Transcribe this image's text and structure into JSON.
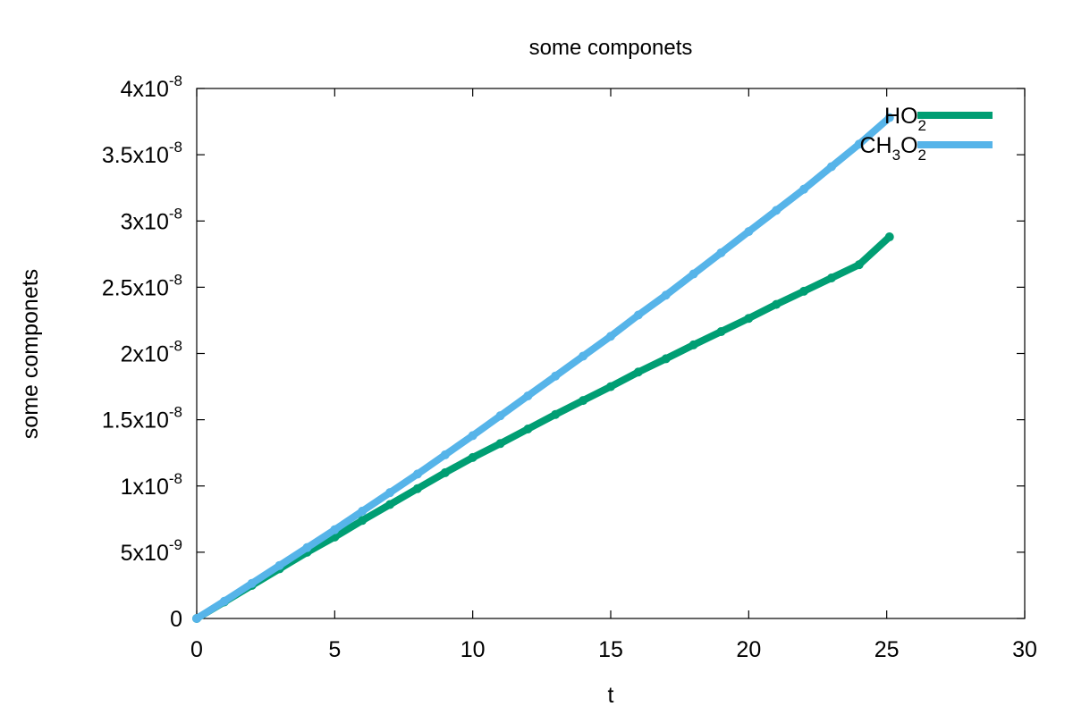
{
  "chart_data": {
    "type": "line",
    "title": "some componets",
    "xlabel": "t",
    "ylabel": "some componets",
    "xlim": [
      0,
      30
    ],
    "ylim": [
      0,
      4e-08
    ],
    "grid": false,
    "legend_position": "top-right",
    "x_ticks": [
      {
        "value": 0,
        "label": "0"
      },
      {
        "value": 5,
        "label": "5"
      },
      {
        "value": 10,
        "label": "10"
      },
      {
        "value": 15,
        "label": "15"
      },
      {
        "value": 20,
        "label": "20"
      },
      {
        "value": 25,
        "label": "25"
      },
      {
        "value": 30,
        "label": "30"
      }
    ],
    "y_ticks": [
      {
        "value": 0,
        "mantissa": "0",
        "exponent": ""
      },
      {
        "value": 5e-09,
        "mantissa": "5x10",
        "exponent": "-9"
      },
      {
        "value": 1e-08,
        "mantissa": "1x10",
        "exponent": "-8"
      },
      {
        "value": 1.5e-08,
        "mantissa": "1.5x10",
        "exponent": "-8"
      },
      {
        "value": 2e-08,
        "mantissa": "2x10",
        "exponent": "-8"
      },
      {
        "value": 2.5e-08,
        "mantissa": "2.5x10",
        "exponent": "-8"
      },
      {
        "value": 3e-08,
        "mantissa": "3x10",
        "exponent": "-8"
      },
      {
        "value": 3.5e-08,
        "mantissa": "3.5x10",
        "exponent": "-8"
      },
      {
        "value": 4e-08,
        "mantissa": "4x10",
        "exponent": "-8"
      }
    ],
    "series": [
      {
        "name": "HO2",
        "name_parts": [
          {
            "text": "HO",
            "sub": ""
          },
          {
            "text": "",
            "sub": "2"
          }
        ],
        "color": "#009e73",
        "x": [
          0,
          1,
          2,
          3,
          4,
          5,
          6,
          7,
          8,
          9,
          10,
          11,
          12,
          13,
          14,
          15,
          16,
          17,
          18,
          19,
          20,
          21,
          22,
          23,
          24,
          25.1
        ],
        "y": [
          0,
          1.25e-09,
          2.5e-09,
          3.75e-09,
          5e-09,
          6.15e-09,
          7.4e-09,
          8.6e-09,
          9.8e-09,
          1.1e-08,
          1.215e-08,
          1.32e-08,
          1.43e-08,
          1.54e-08,
          1.645e-08,
          1.75e-08,
          1.86e-08,
          1.96e-08,
          2.065e-08,
          2.165e-08,
          2.265e-08,
          2.37e-08,
          2.47e-08,
          2.57e-08,
          2.67e-08,
          2.88e-08
        ]
      },
      {
        "name": "CH3O2",
        "name_parts": [
          {
            "text": "CH",
            "sub": "3"
          },
          {
            "text": "O",
            "sub": "2"
          }
        ],
        "color": "#56b4e9",
        "x": [
          0,
          1,
          2,
          3,
          4,
          5,
          6,
          7,
          8,
          9,
          10,
          11,
          12,
          13,
          14,
          15,
          16,
          17,
          18,
          19,
          20,
          21,
          22,
          23,
          24,
          25.1
        ],
        "y": [
          0,
          1.3e-09,
          2.65e-09,
          4e-09,
          5.35e-09,
          6.7e-09,
          8.1e-09,
          9.5e-09,
          1.09e-08,
          1.235e-08,
          1.38e-08,
          1.53e-08,
          1.68e-08,
          1.83e-08,
          1.98e-08,
          2.13e-08,
          2.29e-08,
          2.44e-08,
          2.6e-08,
          2.76e-08,
          2.92e-08,
          3.08e-08,
          3.24e-08,
          3.41e-08,
          3.58e-08,
          3.78e-08
        ]
      }
    ]
  }
}
